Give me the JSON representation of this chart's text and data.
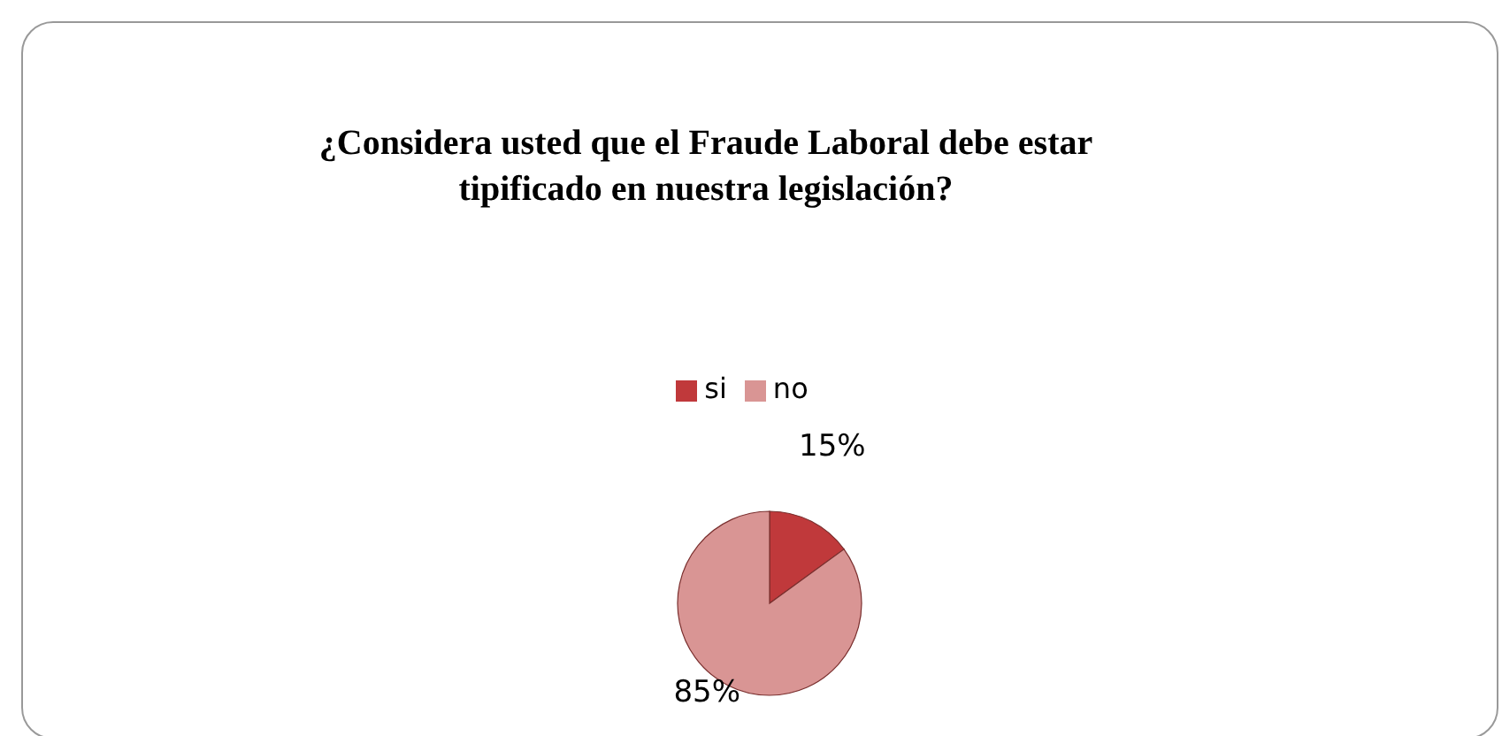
{
  "chart_data": {
    "type": "pie",
    "title": "¿Considera usted que el Fraude Laboral debe estar tipificado en nuestra legislación?",
    "categories": [
      "si",
      "no"
    ],
    "values": [
      15,
      85
    ],
    "value_labels": [
      "15%",
      "85%"
    ],
    "colors": [
      "#c0393b",
      "#d99594"
    ],
    "legend": "top"
  }
}
